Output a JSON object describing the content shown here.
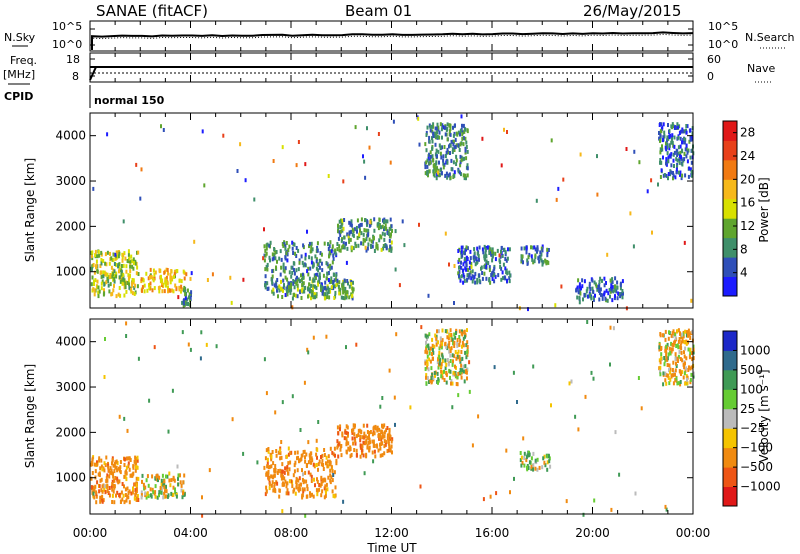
{
  "header": {
    "station": "SANAE (fitACF)",
    "beam": "Beam 01",
    "date": "26/May/2015"
  },
  "top_labels": {
    "nsky": "N.Sky",
    "nsearch": "N.Search",
    "freq": "Freq.",
    "freq_unit": "[MHz]",
    "nave": "Nave",
    "cpid": "CPID",
    "cpid_value": "normal 150",
    "noise_ticks_left": [
      "10^5",
      "10^0"
    ],
    "noise_ticks_right": [
      "10^5",
      "10^0"
    ],
    "freq_ticks": [
      "18",
      "8"
    ],
    "nave_ticks": [
      "60",
      "0"
    ]
  },
  "chart_data": [
    {
      "type": "heatmap",
      "panel": "power",
      "xlabel": "",
      "ylabel": "Slant Range [km]",
      "x_ticks": [
        "00:00",
        "04:00",
        "08:00",
        "12:00",
        "16:00",
        "20:00",
        "00:00"
      ],
      "x_range": [
        0,
        24
      ],
      "y_ticks": [
        1000,
        2000,
        3000,
        4000
      ],
      "ylim": [
        200,
        4500
      ],
      "colorbar": {
        "label": "Power [dB]",
        "ticks": [
          "4",
          "8",
          "12",
          "16",
          "20",
          "24",
          "28"
        ],
        "range": [
          0,
          30
        ],
        "colors": [
          "#1c1cff",
          "#2f4fb8",
          "#3f8f6a",
          "#5fa52e",
          "#d8e000",
          "#f6b81a",
          "#f17a12",
          "#e8401a",
          "#e01818"
        ]
      },
      "echo_regions": [
        {
          "t": [
            0.0,
            1.9
          ],
          "r": [
            500,
            1500
          ],
          "value": 14
        },
        {
          "t": [
            2.0,
            3.8
          ],
          "r": [
            600,
            1100
          ],
          "value": 18
        },
        {
          "t": [
            3.6,
            4.0
          ],
          "r": [
            300,
            700
          ],
          "value": 8
        },
        {
          "t": [
            6.9,
            9.8
          ],
          "r": [
            600,
            1700
          ],
          "value": 8
        },
        {
          "t": [
            9.8,
            12.0
          ],
          "r": [
            1500,
            2200
          ],
          "value": 9
        },
        {
          "t": [
            7.2,
            10.5
          ],
          "r": [
            450,
            850
          ],
          "value": 10
        },
        {
          "t": [
            13.3,
            15.0
          ],
          "r": [
            3100,
            4300
          ],
          "value": 8
        },
        {
          "t": [
            14.6,
            16.7
          ],
          "r": [
            800,
            1600
          ],
          "value": 6
        },
        {
          "t": [
            17.1,
            18.3
          ],
          "r": [
            1200,
            1600
          ],
          "value": 7
        },
        {
          "t": [
            19.3,
            21.2
          ],
          "r": [
            400,
            900
          ],
          "value": 6
        },
        {
          "t": [
            22.6,
            24.0
          ],
          "r": [
            3100,
            4300
          ],
          "value": 6
        }
      ]
    },
    {
      "type": "heatmap",
      "panel": "velocity",
      "xlabel": "Time UT",
      "ylabel": "Slant Range [km]",
      "x_ticks": [
        "00:00",
        "04:00",
        "08:00",
        "12:00",
        "16:00",
        "20:00",
        "00:00"
      ],
      "x_range": [
        0,
        24
      ],
      "y_ticks": [
        1000,
        2000,
        3000,
        4000
      ],
      "ylim": [
        200,
        4500
      ],
      "colorbar": {
        "label": "Velocity [m s⁻¹]",
        "ticks": [
          "1000",
          "500",
          "100",
          "25",
          "−25",
          "−100",
          "−500",
          "−1000"
        ],
        "colors": [
          "#1c28c8",
          "#2f6a8c",
          "#3f9a55",
          "#66cc33",
          "#bbbbbb",
          "#f5c400",
          "#f08a10",
          "#ee5515",
          "#e01818"
        ]
      },
      "echo_regions": [
        {
          "t": [
            0.0,
            1.9
          ],
          "r": [
            500,
            1500
          ],
          "value": -300
        },
        {
          "t": [
            2.0,
            3.8
          ],
          "r": [
            600,
            1100
          ],
          "value": -50
        },
        {
          "t": [
            6.9,
            9.8
          ],
          "r": [
            600,
            1700
          ],
          "value": -300
        },
        {
          "t": [
            9.8,
            12.0
          ],
          "r": [
            1500,
            2200
          ],
          "value": -350
        },
        {
          "t": [
            13.3,
            15.0
          ],
          "r": [
            3100,
            4300
          ],
          "value": -50
        },
        {
          "t": [
            17.1,
            18.3
          ],
          "r": [
            1200,
            1600
          ],
          "value": 80
        },
        {
          "t": [
            22.6,
            24.0
          ],
          "r": [
            3100,
            4300
          ],
          "value": -120
        }
      ]
    }
  ]
}
